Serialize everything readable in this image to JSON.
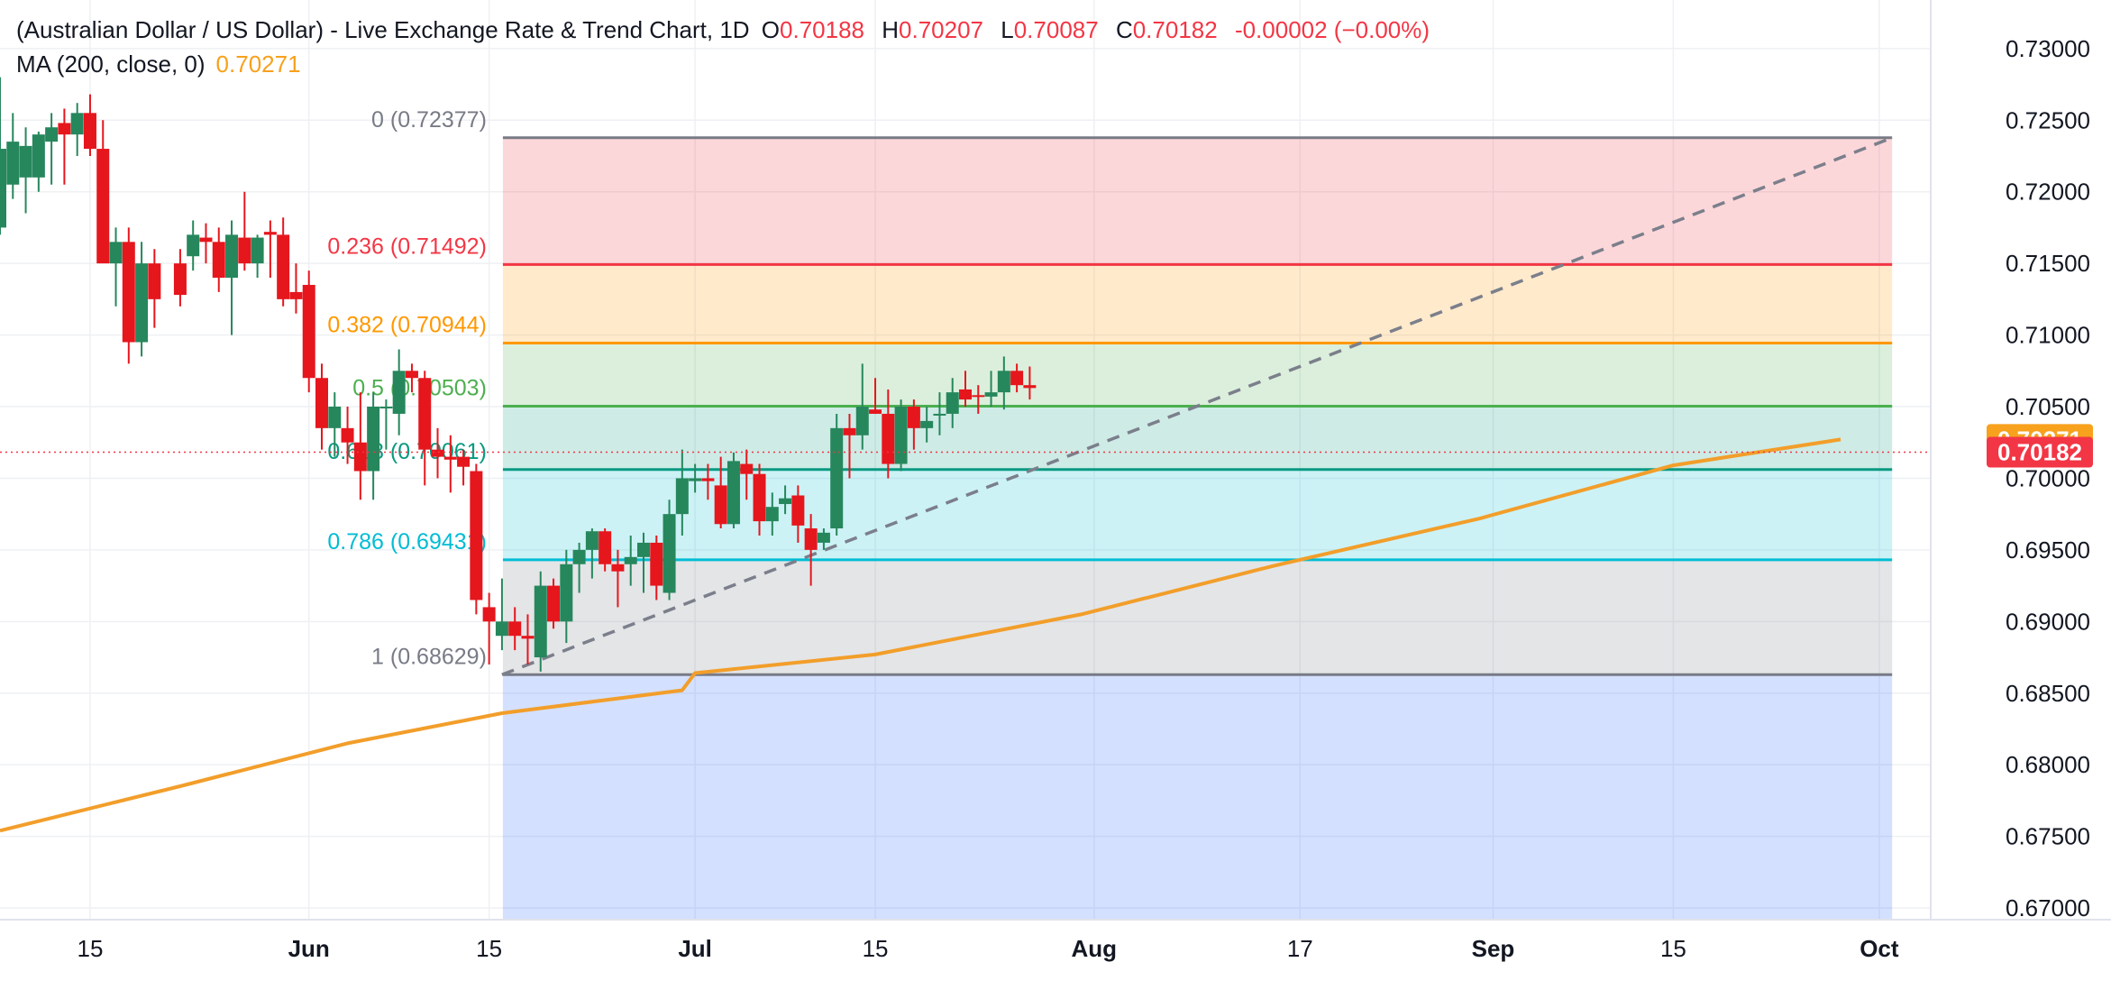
{
  "legend": {
    "title": "(Australian Dollar / US Dollar) - Live Exchange Rate & Trend Chart, 1D",
    "ohlc": [
      {
        "key": "O",
        "value": "0.70188"
      },
      {
        "key": "H",
        "value": "0.70207"
      },
      {
        "key": "L",
        "value": "0.70087"
      },
      {
        "key": "C",
        "value": "0.70182"
      }
    ],
    "change": "-0.00002 (−0.00%)",
    "ma_label": "MA (200, close, 0)",
    "ma_value": "0.70271"
  },
  "price_tags": {
    "ma": {
      "text": "0.70271",
      "value": 0.70271,
      "color": "#f7a11d"
    },
    "close": {
      "text": "0.70182",
      "value": 0.70182,
      "color": "#f23645"
    }
  },
  "colors": {
    "up": "#26875c",
    "down": "#e6161d",
    "ma": "#f29e2a",
    "grid": "#eef0f3",
    "axis_text": "#131722",
    "trend": "#7b7f8b"
  },
  "chart_data": {
    "type": "candlestick",
    "symbol": "(Australian Dollar / US Dollar)",
    "interval": "1D",
    "grid": true,
    "y_axis": {
      "position": "right",
      "range": [
        0.6695,
        0.7315
      ],
      "ticks": [
        0.73,
        0.725,
        0.72,
        0.715,
        0.71,
        0.705,
        0.7,
        0.695,
        0.69,
        0.685,
        0.68,
        0.675,
        0.67
      ],
      "tick_labels": [
        "0.73000",
        "0.72500",
        "0.72000",
        "0.71500",
        "0.71000",
        "0.70500",
        "0.70000",
        "0.69500",
        "0.69000",
        "0.68500",
        "0.68000",
        "0.67500",
        "0.67000"
      ]
    },
    "x_axis": {
      "range": [
        "2024-05-08",
        "2024-10-05"
      ],
      "ticks": [
        {
          "date": "2024-05-15",
          "label": "15",
          "bold": false
        },
        {
          "date": "2024-06-01",
          "label": "Jun",
          "bold": true
        },
        {
          "date": "2024-06-15",
          "label": "15",
          "bold": false
        },
        {
          "date": "2024-07-01",
          "label": "Jul",
          "bold": true
        },
        {
          "date": "2024-07-15",
          "label": "15",
          "bold": false
        },
        {
          "date": "2024-08-01",
          "label": "Aug",
          "bold": true
        },
        {
          "date": "2024-08-17",
          "label": "17",
          "bold": false
        },
        {
          "date": "2024-09-01",
          "label": "Sep",
          "bold": true
        },
        {
          "date": "2024-09-15",
          "label": "15",
          "bold": false
        },
        {
          "date": "2024-10-01",
          "label": "Oct",
          "bold": true
        }
      ]
    },
    "fibonacci": {
      "start": "2024-06-16",
      "end": "2024-10-02",
      "levels": [
        {
          "ratio": "0",
          "price": 0.72377,
          "label": "0 (0.72377)",
          "line": "#787b86",
          "fill": null,
          "text": "#787b86"
        },
        {
          "ratio": "0.236",
          "price": 0.71492,
          "label": "0.236 (0.71492)",
          "line": "#f23645",
          "fill": "#f23645",
          "text": "#f23645"
        },
        {
          "ratio": "0.382",
          "price": 0.70944,
          "label": "0.382 (0.70944)",
          "line": "#ff9800",
          "fill": "#ff9800",
          "text": "#ff9800"
        },
        {
          "ratio": "0.5",
          "price": 0.70503,
          "label": "0.5 (0.70503)",
          "line": "#4caf50",
          "fill": "#4caf50",
          "text": "#4caf50"
        },
        {
          "ratio": "0.618",
          "price": 0.70061,
          "label": "0.618 (0.70061)",
          "line": "#089981",
          "fill": "#089981",
          "text": "#089981"
        },
        {
          "ratio": "0.786",
          "price": 0.69431,
          "label": "0.786 (0.69431)",
          "line": "#00bcd4",
          "fill": "#00bcd4",
          "text": "#00bcd4"
        },
        {
          "ratio": "1",
          "price": 0.68629,
          "label": "1 (0.68629)",
          "line": "#787b86",
          "fill": "#787b86",
          "text": "#787b86"
        }
      ],
      "below_fill": "#2962ff"
    },
    "trend_line": {
      "from": {
        "date": "2024-06-16",
        "price": 0.68629
      },
      "to": {
        "date": "2024-10-02",
        "price": 0.72377
      }
    },
    "ma_series": {
      "name": "MA (200, close, 0)",
      "points": [
        [
          "2024-05-08",
          0.6754
        ],
        [
          "2024-05-22",
          0.6785
        ],
        [
          "2024-06-04",
          0.6815
        ],
        [
          "2024-06-16",
          0.6836
        ],
        [
          "2024-06-30",
          0.6852
        ],
        [
          "2024-07-01",
          0.6864
        ],
        [
          "2024-07-15",
          0.6877
        ],
        [
          "2024-07-31",
          0.6905
        ],
        [
          "2024-08-15",
          0.6939
        ],
        [
          "2024-08-31",
          0.6972
        ],
        [
          "2024-09-15",
          0.7009
        ],
        [
          "2024-09-28",
          0.70271
        ]
      ]
    },
    "candles": [
      {
        "date": "2024-05-08",
        "o": 0.7175,
        "h": 0.728,
        "l": 0.717,
        "c": 0.723
      },
      {
        "date": "2024-05-09",
        "o": 0.7205,
        "h": 0.7255,
        "l": 0.7195,
        "c": 0.7235
      },
      {
        "date": "2024-05-10",
        "o": 0.721,
        "h": 0.7245,
        "l": 0.7185,
        "c": 0.7232
      },
      {
        "date": "2024-05-11",
        "o": 0.721,
        "h": 0.7242,
        "l": 0.72,
        "c": 0.724
      },
      {
        "date": "2024-05-12",
        "o": 0.7235,
        "h": 0.7255,
        "l": 0.7205,
        "c": 0.7245
      },
      {
        "date": "2024-05-13",
        "o": 0.7248,
        "h": 0.7258,
        "l": 0.7205,
        "c": 0.724
      },
      {
        "date": "2024-05-14",
        "o": 0.724,
        "h": 0.7262,
        "l": 0.7225,
        "c": 0.7255
      },
      {
        "date": "2024-05-15",
        "o": 0.7255,
        "h": 0.7268,
        "l": 0.7225,
        "c": 0.723
      },
      {
        "date": "2024-05-16",
        "o": 0.723,
        "h": 0.725,
        "l": 0.7155,
        "c": 0.715
      },
      {
        "date": "2024-05-17",
        "o": 0.715,
        "h": 0.7175,
        "l": 0.712,
        "c": 0.7165
      },
      {
        "date": "2024-05-18",
        "o": 0.7165,
        "h": 0.7175,
        "l": 0.708,
        "c": 0.7095
      },
      {
        "date": "2024-05-19",
        "o": 0.7095,
        "h": 0.7165,
        "l": 0.7085,
        "c": 0.715
      },
      {
        "date": "2024-05-20",
        "o": 0.715,
        "h": 0.716,
        "l": 0.7105,
        "c": 0.7125
      },
      {
        "date": "2024-05-22",
        "o": 0.715,
        "h": 0.716,
        "l": 0.712,
        "c": 0.7128
      },
      {
        "date": "2024-05-23",
        "o": 0.7155,
        "h": 0.718,
        "l": 0.7145,
        "c": 0.717
      },
      {
        "date": "2024-05-24",
        "o": 0.7168,
        "h": 0.7178,
        "l": 0.715,
        "c": 0.7165
      },
      {
        "date": "2024-05-25",
        "o": 0.7165,
        "h": 0.7175,
        "l": 0.713,
        "c": 0.714
      },
      {
        "date": "2024-05-26",
        "o": 0.714,
        "h": 0.718,
        "l": 0.71,
        "c": 0.717
      },
      {
        "date": "2024-05-27",
        "o": 0.7168,
        "h": 0.72,
        "l": 0.7145,
        "c": 0.715
      },
      {
        "date": "2024-05-28",
        "o": 0.715,
        "h": 0.717,
        "l": 0.714,
        "c": 0.7168
      },
      {
        "date": "2024-05-29",
        "o": 0.7172,
        "h": 0.718,
        "l": 0.714,
        "c": 0.717
      },
      {
        "date": "2024-05-30",
        "o": 0.717,
        "h": 0.7182,
        "l": 0.712,
        "c": 0.7125
      },
      {
        "date": "2024-05-31",
        "o": 0.713,
        "h": 0.715,
        "l": 0.7115,
        "c": 0.7125
      },
      {
        "date": "2024-06-01",
        "o": 0.7135,
        "h": 0.7145,
        "l": 0.706,
        "c": 0.707
      },
      {
        "date": "2024-06-02",
        "o": 0.707,
        "h": 0.708,
        "l": 0.702,
        "c": 0.7035
      },
      {
        "date": "2024-06-03",
        "o": 0.7035,
        "h": 0.706,
        "l": 0.7015,
        "c": 0.705
      },
      {
        "date": "2024-06-04",
        "o": 0.7035,
        "h": 0.705,
        "l": 0.701,
        "c": 0.7025
      },
      {
        "date": "2024-06-05",
        "o": 0.7025,
        "h": 0.706,
        "l": 0.6985,
        "c": 0.7005
      },
      {
        "date": "2024-06-06",
        "o": 0.7005,
        "h": 0.706,
        "l": 0.6985,
        "c": 0.705
      },
      {
        "date": "2024-06-07",
        "o": 0.705,
        "h": 0.7055,
        "l": 0.702,
        "c": 0.705
      },
      {
        "date": "2024-06-08",
        "o": 0.7045,
        "h": 0.709,
        "l": 0.703,
        "c": 0.7075
      },
      {
        "date": "2024-06-09",
        "o": 0.7075,
        "h": 0.708,
        "l": 0.706,
        "c": 0.707
      },
      {
        "date": "2024-06-10",
        "o": 0.707,
        "h": 0.7075,
        "l": 0.6995,
        "c": 0.702
      },
      {
        "date": "2024-06-11",
        "o": 0.702,
        "h": 0.7035,
        "l": 0.7,
        "c": 0.7015
      },
      {
        "date": "2024-06-12",
        "o": 0.7015,
        "h": 0.703,
        "l": 0.699,
        "c": 0.7013
      },
      {
        "date": "2024-06-13",
        "o": 0.7015,
        "h": 0.702,
        "l": 0.6995,
        "c": 0.7008
      },
      {
        "date": "2024-06-14",
        "o": 0.7005,
        "h": 0.701,
        "l": 0.6905,
        "c": 0.6915
      },
      {
        "date": "2024-06-15",
        "o": 0.691,
        "h": 0.692,
        "l": 0.687,
        "c": 0.69
      },
      {
        "date": "2024-06-16",
        "o": 0.689,
        "h": 0.693,
        "l": 0.688,
        "c": 0.69
      },
      {
        "date": "2024-06-17",
        "o": 0.69,
        "h": 0.691,
        "l": 0.688,
        "c": 0.689
      },
      {
        "date": "2024-06-18",
        "o": 0.689,
        "h": 0.6905,
        "l": 0.687,
        "c": 0.6888
      },
      {
        "date": "2024-06-19",
        "o": 0.6875,
        "h": 0.6935,
        "l": 0.6865,
        "c": 0.6925
      },
      {
        "date": "2024-06-20",
        "o": 0.6925,
        "h": 0.693,
        "l": 0.6895,
        "c": 0.69
      },
      {
        "date": "2024-06-21",
        "o": 0.69,
        "h": 0.695,
        "l": 0.6885,
        "c": 0.694
      },
      {
        "date": "2024-06-22",
        "o": 0.694,
        "h": 0.6955,
        "l": 0.692,
        "c": 0.695
      },
      {
        "date": "2024-06-23",
        "o": 0.695,
        "h": 0.6965,
        "l": 0.693,
        "c": 0.6963
      },
      {
        "date": "2024-06-24",
        "o": 0.6963,
        "h": 0.6965,
        "l": 0.6935,
        "c": 0.694
      },
      {
        "date": "2024-06-25",
        "o": 0.694,
        "h": 0.695,
        "l": 0.691,
        "c": 0.6935
      },
      {
        "date": "2024-06-26",
        "o": 0.694,
        "h": 0.696,
        "l": 0.6925,
        "c": 0.6945
      },
      {
        "date": "2024-06-27",
        "o": 0.6945,
        "h": 0.6962,
        "l": 0.692,
        "c": 0.6955
      },
      {
        "date": "2024-06-28",
        "o": 0.6955,
        "h": 0.696,
        "l": 0.6915,
        "c": 0.6925
      },
      {
        "date": "2024-06-29",
        "o": 0.692,
        "h": 0.6985,
        "l": 0.6915,
        "c": 0.6975
      },
      {
        "date": "2024-06-30",
        "o": 0.6975,
        "h": 0.702,
        "l": 0.696,
        "c": 0.7
      },
      {
        "date": "2024-07-01",
        "o": 0.6998,
        "h": 0.701,
        "l": 0.699,
        "c": 0.7
      },
      {
        "date": "2024-07-02",
        "o": 0.7,
        "h": 0.701,
        "l": 0.6985,
        "c": 0.6998
      },
      {
        "date": "2024-07-03",
        "o": 0.6995,
        "h": 0.7015,
        "l": 0.6965,
        "c": 0.6968
      },
      {
        "date": "2024-07-04",
        "o": 0.6968,
        "h": 0.7018,
        "l": 0.6965,
        "c": 0.7012
      },
      {
        "date": "2024-07-05",
        "o": 0.701,
        "h": 0.702,
        "l": 0.6985,
        "c": 0.7003
      },
      {
        "date": "2024-07-06",
        "o": 0.7003,
        "h": 0.701,
        "l": 0.696,
        "c": 0.697
      },
      {
        "date": "2024-07-07",
        "o": 0.697,
        "h": 0.699,
        "l": 0.696,
        "c": 0.698
      },
      {
        "date": "2024-07-08",
        "o": 0.6982,
        "h": 0.6995,
        "l": 0.6975,
        "c": 0.6986
      },
      {
        "date": "2024-07-09",
        "o": 0.6988,
        "h": 0.6995,
        "l": 0.6955,
        "c": 0.6967
      },
      {
        "date": "2024-07-10",
        "o": 0.6965,
        "h": 0.6975,
        "l": 0.6925,
        "c": 0.695
      },
      {
        "date": "2024-07-11",
        "o": 0.6955,
        "h": 0.6965,
        "l": 0.695,
        "c": 0.6962
      },
      {
        "date": "2024-07-12",
        "o": 0.6965,
        "h": 0.7045,
        "l": 0.696,
        "c": 0.7035
      },
      {
        "date": "2024-07-13",
        "o": 0.7035,
        "h": 0.7045,
        "l": 0.7,
        "c": 0.703
      },
      {
        "date": "2024-07-14",
        "o": 0.703,
        "h": 0.708,
        "l": 0.702,
        "c": 0.705
      },
      {
        "date": "2024-07-15",
        "o": 0.7048,
        "h": 0.707,
        "l": 0.7045,
        "c": 0.7045
      }
    ],
    "candles_2": [
      {
        "date": "2024-07-16",
        "o": 0.7045,
        "h": 0.7062,
        "l": 0.7,
        "c": 0.701
      },
      {
        "date": "2024-07-17",
        "o": 0.701,
        "h": 0.7055,
        "l": 0.7005,
        "c": 0.705
      },
      {
        "date": "2024-07-18",
        "o": 0.705,
        "h": 0.7055,
        "l": 0.702,
        "c": 0.7035
      },
      {
        "date": "2024-07-19",
        "o": 0.7035,
        "h": 0.705,
        "l": 0.7025,
        "c": 0.704
      },
      {
        "date": "2024-07-20",
        "o": 0.7045,
        "h": 0.706,
        "l": 0.703,
        "c": 0.7045
      },
      {
        "date": "2024-07-21",
        "o": 0.7045,
        "h": 0.707,
        "l": 0.7035,
        "c": 0.706
      },
      {
        "date": "2024-07-22",
        "o": 0.7062,
        "h": 0.7075,
        "l": 0.705,
        "c": 0.7055
      },
      {
        "date": "2024-07-23",
        "o": 0.7058,
        "h": 0.7065,
        "l": 0.7045,
        "c": 0.7057
      },
      {
        "date": "2024-07-24",
        "o": 0.7057,
        "h": 0.7075,
        "l": 0.705,
        "c": 0.706
      },
      {
        "date": "2024-07-25",
        "o": 0.706,
        "h": 0.7085,
        "l": 0.7048,
        "c": 0.7075
      },
      {
        "date": "2024-07-26",
        "o": 0.7075,
        "h": 0.708,
        "l": 0.706,
        "c": 0.7065
      },
      {
        "date": "2024-07-27",
        "o": 0.7065,
        "h": 0.7078,
        "l": 0.7055,
        "c": 0.7063
      }
    ]
  }
}
